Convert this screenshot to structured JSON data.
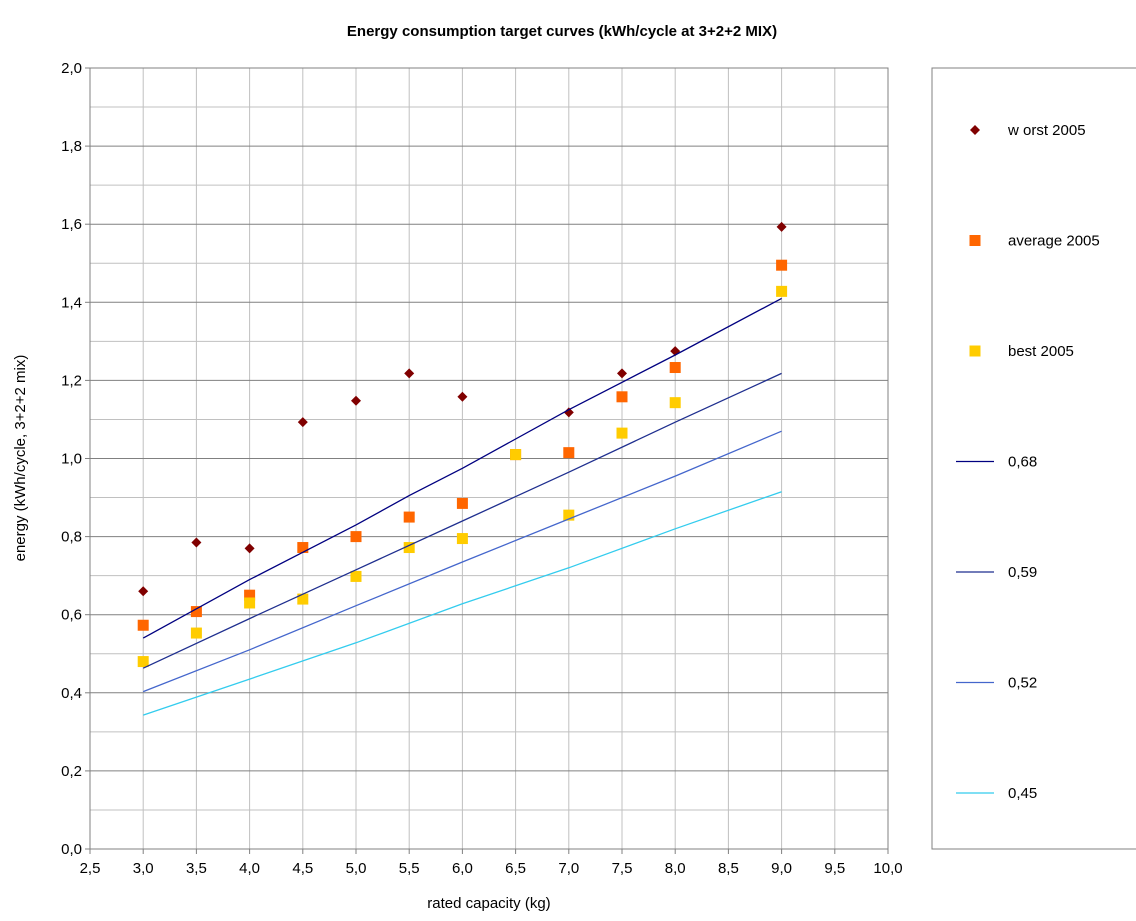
{
  "chart_data": {
    "type": "scatter",
    "title": "Energy consumption target curves (kWh/cycle at 3+2+2 MIX)",
    "xlabel": "rated capacity (kg)",
    "ylabel": "energy (kWh/cycle, 3+2+2 mix)",
    "xlim": [
      2.5,
      10.0
    ],
    "ylim": [
      0.0,
      2.0
    ],
    "x_ticks": [
      "2,5",
      "3,0",
      "3,5",
      "4,0",
      "4,5",
      "5,0",
      "5,5",
      "6,0",
      "6,5",
      "7,0",
      "7,5",
      "8,0",
      "8,5",
      "9,0",
      "9,5",
      "10,0"
    ],
    "y_ticks": [
      "0,0",
      "0,2",
      "0,4",
      "0,6",
      "0,8",
      "1,0",
      "1,2",
      "1,4",
      "1,6",
      "1,8",
      "2,0"
    ],
    "grid": true,
    "legend_position": "right",
    "series": [
      {
        "name": "w orst 2005",
        "kind": "marker",
        "marker": "diamond",
        "color": "#800000",
        "points": [
          [
            3.0,
            0.66
          ],
          [
            3.5,
            0.785
          ],
          [
            4.0,
            0.77
          ],
          [
            4.5,
            1.093
          ],
          [
            5.0,
            1.148
          ],
          [
            5.5,
            1.218
          ],
          [
            6.0,
            1.158
          ],
          [
            6.5,
            1.01
          ],
          [
            7.0,
            1.118
          ],
          [
            7.5,
            1.218
          ],
          [
            8.0,
            1.275
          ],
          [
            9.0,
            1.593
          ]
        ]
      },
      {
        "name": "average 2005",
        "kind": "marker",
        "marker": "square",
        "color": "#FF6600",
        "points": [
          [
            3.0,
            0.573
          ],
          [
            3.5,
            0.608
          ],
          [
            4.0,
            0.65
          ],
          [
            4.5,
            0.772
          ],
          [
            5.0,
            0.8
          ],
          [
            5.5,
            0.85
          ],
          [
            6.0,
            0.885
          ],
          [
            6.5,
            1.01
          ],
          [
            7.0,
            1.015
          ],
          [
            7.5,
            1.158
          ],
          [
            8.0,
            1.233
          ],
          [
            9.0,
            1.495
          ]
        ]
      },
      {
        "name": "best 2005",
        "kind": "marker",
        "marker": "square",
        "color": "#FFCC00",
        "points": [
          [
            3.0,
            0.48
          ],
          [
            3.5,
            0.553
          ],
          [
            4.0,
            0.63
          ],
          [
            4.5,
            0.64
          ],
          [
            5.0,
            0.698
          ],
          [
            5.5,
            0.772
          ],
          [
            6.0,
            0.795
          ],
          [
            6.5,
            1.01
          ],
          [
            7.0,
            0.855
          ],
          [
            7.5,
            1.065
          ],
          [
            8.0,
            1.143
          ],
          [
            9.0,
            1.428
          ]
        ]
      },
      {
        "name": "0,68",
        "kind": "line",
        "color": "#000080",
        "points": [
          [
            3.0,
            0.54
          ],
          [
            4.0,
            0.69
          ],
          [
            5.0,
            0.83
          ],
          [
            5.5,
            0.905
          ],
          [
            6.0,
            0.975
          ],
          [
            7.0,
            1.125
          ],
          [
            8.0,
            1.265
          ],
          [
            9.0,
            1.41
          ]
        ]
      },
      {
        "name": "0,59",
        "kind": "line",
        "color": "#1F2F8F",
        "points": [
          [
            3.0,
            0.463
          ],
          [
            4.0,
            0.59
          ],
          [
            5.0,
            0.715
          ],
          [
            6.0,
            0.84
          ],
          [
            7.0,
            0.965
          ],
          [
            8.0,
            1.093
          ],
          [
            9.0,
            1.218
          ]
        ]
      },
      {
        "name": "0,52",
        "kind": "line",
        "color": "#4466CC",
        "points": [
          [
            3.0,
            0.403
          ],
          [
            4.0,
            0.51
          ],
          [
            5.0,
            0.623
          ],
          [
            6.0,
            0.735
          ],
          [
            7.0,
            0.845
          ],
          [
            8.0,
            0.955
          ],
          [
            9.0,
            1.07
          ]
        ]
      },
      {
        "name": "0,45",
        "kind": "line",
        "color": "#33CCEE",
        "points": [
          [
            3.0,
            0.343
          ],
          [
            4.0,
            0.435
          ],
          [
            5.0,
            0.528
          ],
          [
            6.0,
            0.628
          ],
          [
            7.0,
            0.72
          ],
          [
            8.0,
            0.82
          ],
          [
            9.0,
            0.915
          ]
        ]
      }
    ]
  }
}
